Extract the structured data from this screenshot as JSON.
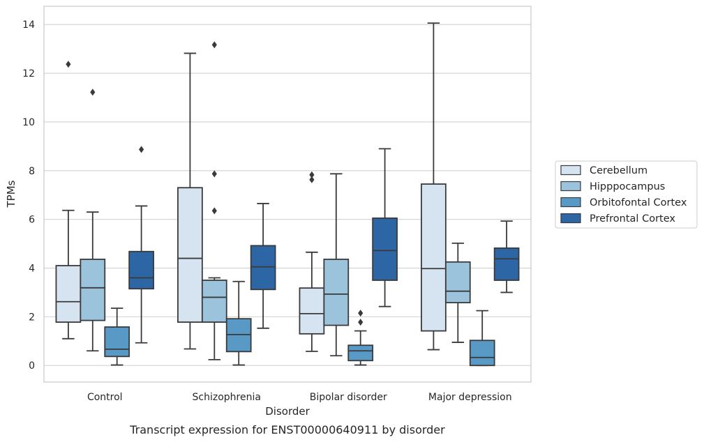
{
  "chart_data": {
    "type": "box",
    "title": "",
    "caption": "Transcript expression for ENST00000640911 by disorder",
    "xlabel": "Disorder",
    "ylabel": "TPMs",
    "ylim": [
      -0.68,
      14.75
    ],
    "yticks": [
      0,
      2,
      4,
      6,
      8,
      10,
      12,
      14
    ],
    "grid": "horizontal",
    "legend_placement": "right",
    "categories": [
      "Control",
      "Schizophrenia",
      "Bipolar disorder",
      "Major depression"
    ],
    "series": [
      {
        "name": "Cerebellum",
        "color": "#d6e4f2",
        "boxes": [
          {
            "whislo": 1.1,
            "q1": 1.78,
            "med": 2.62,
            "q3": 4.1,
            "whishi": 6.37,
            "fliers": [
              12.37
            ]
          },
          {
            "whislo": 0.68,
            "q1": 1.78,
            "med": 4.4,
            "q3": 7.3,
            "whishi": 12.82,
            "fliers": []
          },
          {
            "whislo": 0.58,
            "q1": 1.3,
            "med": 2.13,
            "q3": 3.18,
            "whishi": 4.65,
            "fliers": [
              7.63,
              7.83
            ]
          },
          {
            "whislo": 0.65,
            "q1": 1.42,
            "med": 3.98,
            "q3": 7.45,
            "whishi": 14.06,
            "fliers": []
          }
        ]
      },
      {
        "name": "Hipppocampus",
        "color": "#9bc3dc",
        "boxes": [
          {
            "whislo": 0.6,
            "q1": 1.85,
            "med": 3.19,
            "q3": 4.36,
            "whishi": 6.3,
            "fliers": [
              11.22
            ]
          },
          {
            "whislo": 0.24,
            "q1": 1.78,
            "med": 2.8,
            "q3": 3.5,
            "whishi": 3.6,
            "fliers": [
              13.17,
              7.87,
              6.35
            ]
          },
          {
            "whislo": 0.4,
            "q1": 1.65,
            "med": 2.93,
            "q3": 4.36,
            "whishi": 7.87,
            "fliers": []
          },
          {
            "whislo": 0.95,
            "q1": 2.58,
            "med": 3.05,
            "q3": 4.25,
            "whishi": 5.02,
            "fliers": []
          }
        ]
      },
      {
        "name": "Orbitofontal Cortex",
        "color": "#5999c6",
        "boxes": [
          {
            "whislo": 0.02,
            "q1": 0.37,
            "med": 0.67,
            "q3": 1.58,
            "whishi": 2.35,
            "fliers": []
          },
          {
            "whislo": 0.02,
            "q1": 0.57,
            "med": 1.27,
            "q3": 1.92,
            "whishi": 3.45,
            "fliers": []
          },
          {
            "whislo": 0.02,
            "q1": 0.2,
            "med": 0.6,
            "q3": 0.83,
            "whishi": 1.42,
            "fliers": [
              1.78,
              2.15
            ]
          },
          {
            "whislo": 0.0,
            "q1": 0.0,
            "med": 0.33,
            "q3": 1.03,
            "whishi": 2.25,
            "fliers": []
          }
        ]
      },
      {
        "name": "Prefrontal Cortex",
        "color": "#2d66a5",
        "boxes": [
          {
            "whislo": 0.93,
            "q1": 3.15,
            "med": 3.6,
            "q3": 4.68,
            "whishi": 6.55,
            "fliers": [
              8.87
            ]
          },
          {
            "whislo": 1.53,
            "q1": 3.12,
            "med": 4.05,
            "q3": 4.92,
            "whishi": 6.65,
            "fliers": []
          },
          {
            "whislo": 2.42,
            "q1": 3.5,
            "med": 4.72,
            "q3": 6.05,
            "whishi": 8.9,
            "fliers": []
          },
          {
            "whislo": 3.0,
            "q1": 3.5,
            "med": 4.38,
            "q3": 4.82,
            "whishi": 5.93,
            "fliers": []
          }
        ]
      }
    ]
  }
}
